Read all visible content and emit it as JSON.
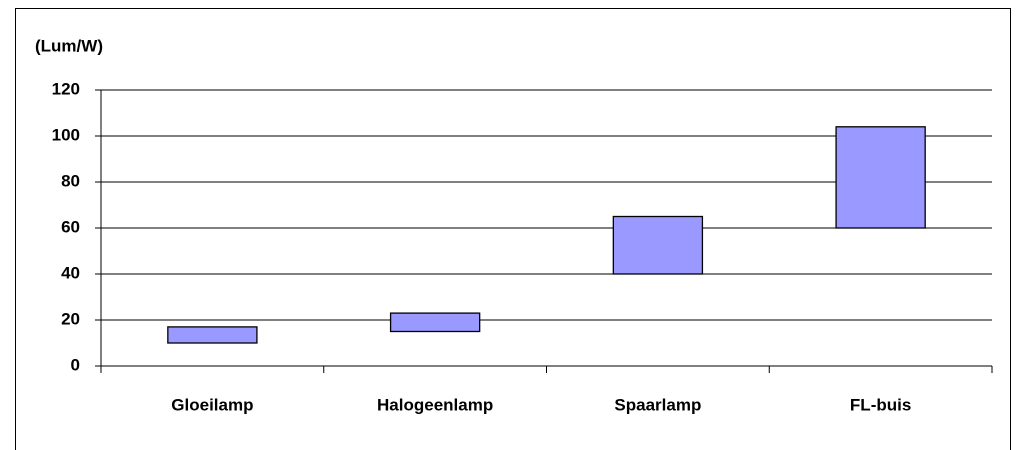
{
  "chart_data": {
    "type": "range_bar",
    "y_label": "(Lum/W)",
    "categories": [
      "Gloeilamp",
      "Halogeenlamp",
      "Spaarlamp",
      "FL-buis"
    ],
    "low": [
      10,
      15,
      40,
      60
    ],
    "high": [
      17,
      23,
      65,
      104
    ],
    "color": "#9999ff",
    "ylim": [
      0,
      120
    ],
    "yticks": [
      0,
      20,
      40,
      60,
      80,
      100,
      120
    ],
    "grid": true
  }
}
